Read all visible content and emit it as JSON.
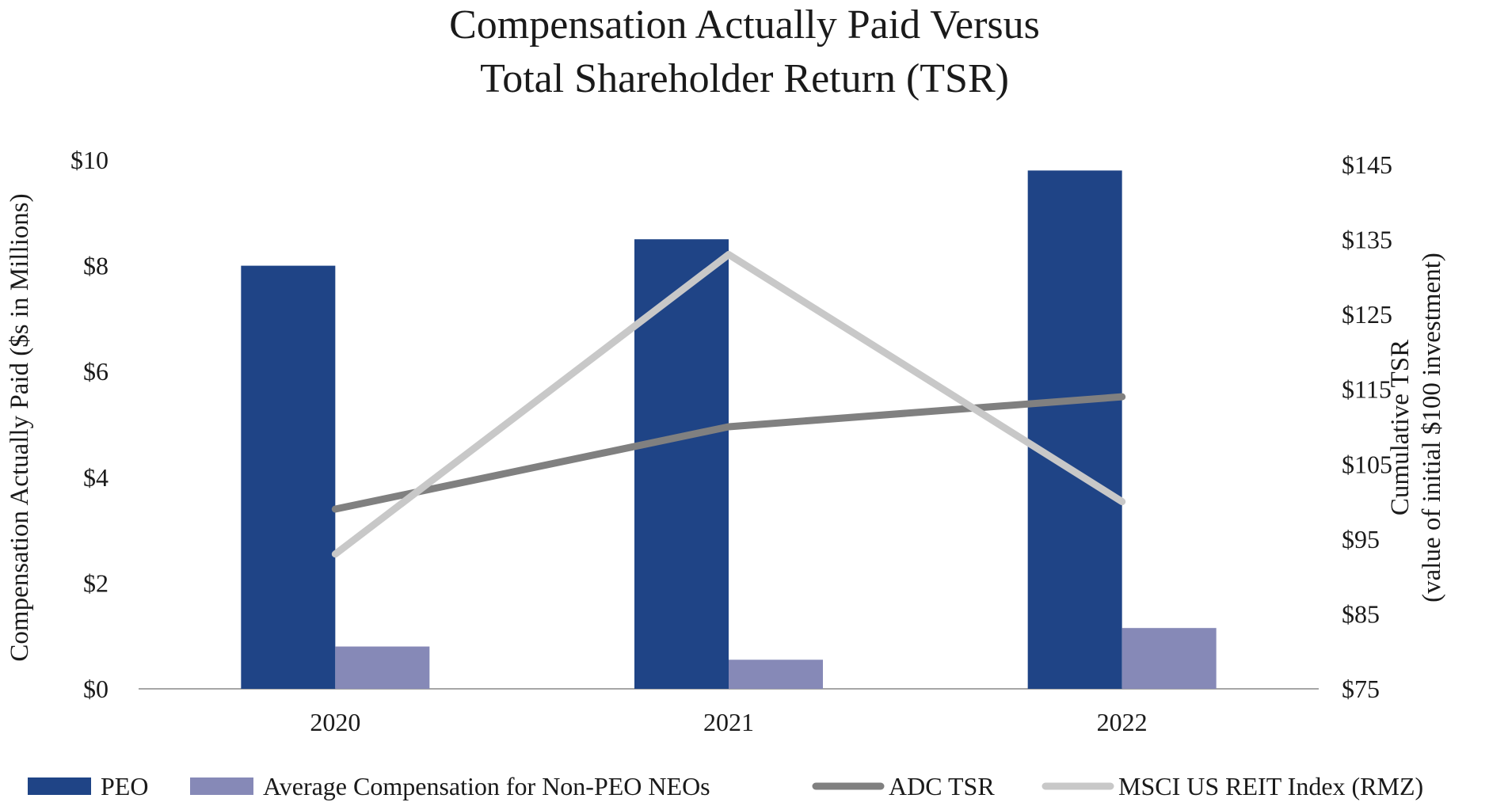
{
  "chart_data": {
    "type": "bar",
    "title_lines": [
      "Compensation Actually Paid Versus",
      "Total Shareholder Return (TSR)"
    ],
    "categories": [
      "2020",
      "2021",
      "2022"
    ],
    "ylabel": "Compensation Actually Paid ($s in Millions)",
    "ylabel_right_lines": [
      "Cumulative TSR",
      "(value of initial $100 investment)"
    ],
    "ylim": [
      0,
      10
    ],
    "y_ticks": [
      0,
      2,
      4,
      6,
      8,
      10
    ],
    "y_tick_labels": [
      "$0",
      "$2",
      "$4",
      "$6",
      "$8",
      "$10"
    ],
    "ylim_right": [
      75,
      150
    ],
    "y_right_ticks": [
      75,
      85,
      95,
      105,
      115,
      125,
      135,
      145
    ],
    "y_right_tick_labels": [
      "$75",
      "$85",
      "$95",
      "$105",
      "$115",
      "$125",
      "$135",
      "$145"
    ],
    "grid": false,
    "legend_position": "bottom",
    "series": [
      {
        "name": "PEO",
        "kind": "bar",
        "axis": "left",
        "color": "#1f4486",
        "values": [
          8.0,
          8.5,
          9.8
        ]
      },
      {
        "name": "Average Compensation for Non-PEO NEOs",
        "kind": "bar",
        "axis": "left",
        "color": "#8689b7",
        "values": [
          0.8,
          0.55,
          1.15
        ]
      },
      {
        "name": "ADC TSR",
        "kind": "line",
        "axis": "right",
        "color": "#808080",
        "values": [
          99,
          110,
          114
        ]
      },
      {
        "name": "MSCI US REIT Index (RMZ)",
        "kind": "line",
        "axis": "right",
        "color": "#c8c8c8",
        "values": [
          93,
          133,
          100
        ]
      }
    ]
  }
}
